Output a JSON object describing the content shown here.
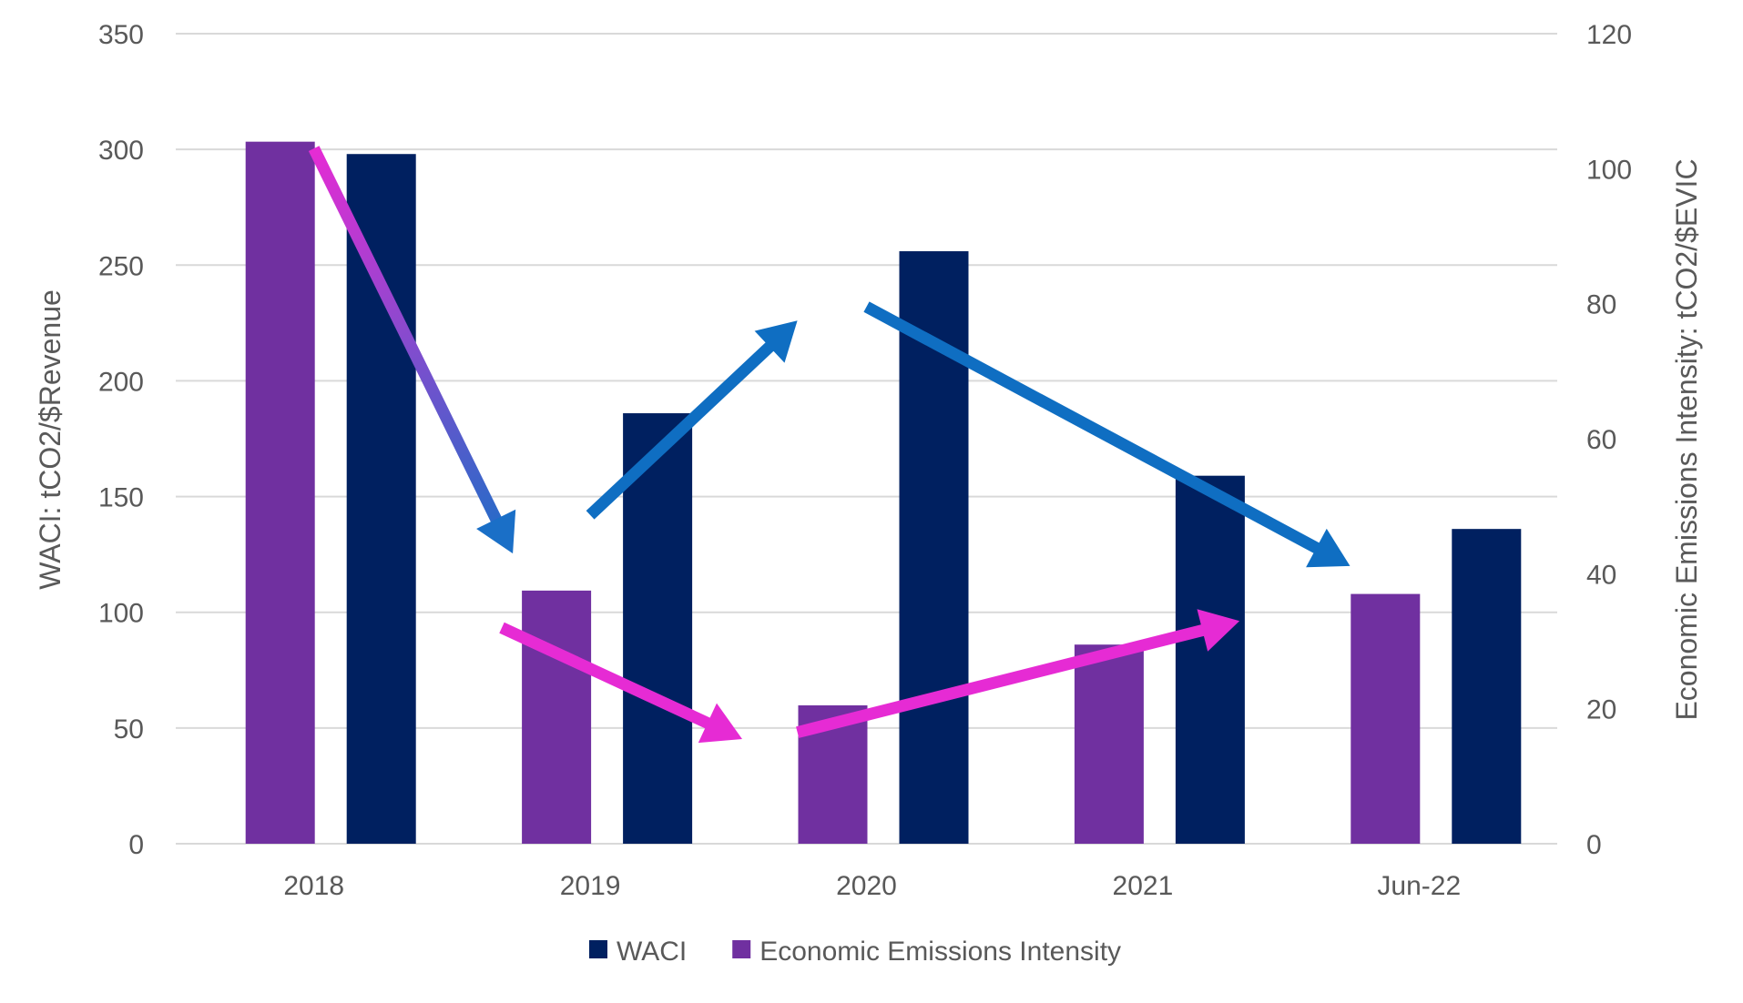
{
  "chart_data": {
    "type": "bar",
    "title": "",
    "categories": [
      "2018",
      "2019",
      "2020",
      "2021",
      "Jun-22"
    ],
    "series": [
      {
        "name": "Economic Emissions Intensity",
        "axis": "right",
        "color": "#7030A0",
        "values": [
          104,
          37.5,
          20.5,
          29.5,
          37
        ]
      },
      {
        "name": "WACI",
        "axis": "left",
        "color": "#002060",
        "values": [
          298,
          186,
          256,
          159,
          136
        ]
      }
    ],
    "y_left": {
      "label": "WACI: tCO2/$Revenue",
      "ylim": [
        0,
        350
      ],
      "ticks": [
        0,
        50,
        100,
        150,
        200,
        250,
        300,
        350
      ]
    },
    "y_right": {
      "label": "Economic Emissions Intensity: tCO2/$EVIC",
      "ylim": [
        0,
        120
      ],
      "ticks": [
        0,
        20,
        40,
        60,
        80,
        100,
        120
      ]
    },
    "grid": true,
    "legend": {
      "placement": "bottom",
      "order": [
        "WACI",
        "Economic Emissions Intensity"
      ]
    },
    "annotations": [
      {
        "name": "eei-trend-2018-2019",
        "from": {
          "category": 0,
          "value": 103
        },
        "to": {
          "category": 0.72,
          "value": 43
        },
        "axis": "right",
        "colors": [
          "#E62BD4",
          "#1A6FC7"
        ]
      },
      {
        "name": "waci-trend-2019-2020",
        "from": {
          "category": 1,
          "value": 142
        },
        "to": {
          "category": 1.75,
          "value": 226
        },
        "axis": "left",
        "colors": [
          "#0F6EC2",
          "#0F6EC2"
        ]
      },
      {
        "name": "waci-trend-2020-jun22",
        "from": {
          "category": 2,
          "value": 232
        },
        "to": {
          "category": 3.75,
          "value": 120
        },
        "axis": "left",
        "colors": [
          "#0F6EC2",
          "#0F6EC2"
        ]
      },
      {
        "name": "eei-trend-2019-2020",
        "from": {
          "category": 0.68,
          "value": 32
        },
        "to": {
          "category": 1.55,
          "value": 15.5
        },
        "axis": "right",
        "colors": [
          "#E62BD4",
          "#E62BD4"
        ]
      },
      {
        "name": "eei-trend-2020-2021",
        "from": {
          "category": 1.75,
          "value": 16.5
        },
        "to": {
          "category": 3.35,
          "value": 33
        },
        "axis": "right",
        "colors": [
          "#E62BD4",
          "#E62BD4"
        ]
      }
    ]
  }
}
